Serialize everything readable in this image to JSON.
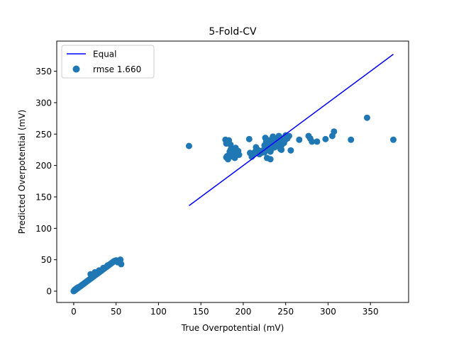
{
  "chart_data": {
    "type": "scatter",
    "title": "5-Fold-CV",
    "xlabel": "True Overpotential (mV)",
    "ylabel": "Predicted Overpotential (mV)",
    "xlim": [
      -20,
      395
    ],
    "ylim": [
      -18,
      398
    ],
    "xticks": [
      0,
      50,
      100,
      150,
      200,
      250,
      300,
      350
    ],
    "yticks": [
      0,
      50,
      100,
      150,
      200,
      250,
      300,
      350
    ],
    "grid": false,
    "legend_position": "top-left",
    "series": [
      {
        "name": "Equal",
        "kind": "line",
        "color": "#0000ff",
        "x": [
          136,
          377
        ],
        "y": [
          136,
          377
        ]
      },
      {
        "name": "rmse 1.660",
        "kind": "scatter",
        "color": "#1f77b4",
        "x": [
          0,
          1,
          1,
          2,
          2,
          3,
          3,
          4,
          4,
          5,
          5,
          6,
          7,
          8,
          9,
          10,
          11,
          12,
          13,
          14,
          15,
          16,
          17,
          18,
          19,
          20,
          21,
          22,
          23,
          24,
          25,
          26,
          27,
          28,
          29,
          30,
          31,
          32,
          33,
          34,
          35,
          36,
          37,
          38,
          39,
          40,
          41,
          42,
          43,
          44,
          45,
          46,
          47,
          48,
          50,
          52,
          54,
          55,
          56,
          20,
          25,
          30,
          35,
          40,
          45,
          50,
          55,
          136,
          179,
          180,
          181,
          182,
          183,
          184,
          185,
          186,
          187,
          188,
          189,
          190,
          191,
          192,
          193,
          194,
          195,
          207,
          208,
          210,
          212,
          214,
          215,
          217,
          219,
          221,
          223,
          225,
          226,
          227,
          228,
          229,
          230,
          231,
          232,
          233,
          234,
          235,
          236,
          237,
          238,
          239,
          240,
          241,
          242,
          243,
          244,
          245,
          246,
          247,
          248,
          249,
          250,
          252,
          254,
          256,
          266,
          277,
          279,
          281,
          287,
          297,
          305,
          307,
          327,
          346,
          377,
          180,
          185,
          190,
          225,
          230,
          235,
          240,
          245,
          228,
          232
        ],
        "y": [
          0,
          1,
          2,
          2,
          3,
          3,
          4,
          4,
          5,
          5,
          6,
          6,
          7,
          8,
          9,
          10,
          11,
          12,
          13,
          14,
          15,
          16,
          17,
          18,
          19,
          20,
          21,
          22,
          23,
          24,
          25,
          26,
          27,
          28,
          29,
          30,
          31,
          32,
          33,
          34,
          35,
          36,
          37,
          38,
          39,
          40,
          41,
          42,
          43,
          44,
          45,
          46,
          47,
          48,
          49,
          46,
          48,
          50,
          43,
          27,
          30,
          33,
          37,
          41,
          45,
          48,
          50,
          231,
          241,
          213,
          215,
          210,
          240,
          222,
          233,
          218,
          225,
          214,
          216,
          220,
          228,
          221,
          219,
          223,
          217,
          242,
          220,
          214,
          219,
          222,
          229,
          225,
          218,
          220,
          224,
          232,
          244,
          238,
          230,
          235,
          227,
          240,
          222,
          226,
          233,
          241,
          237,
          229,
          231,
          243,
          239,
          236,
          247,
          245,
          226,
          232,
          240,
          238,
          236,
          240,
          248,
          243,
          247,
          224,
          241,
          247,
          243,
          238,
          238,
          242,
          247,
          254,
          241,
          276,
          241,
          235,
          225,
          212,
          221,
          228,
          246,
          231,
          225,
          212,
          210
        ]
      }
    ]
  }
}
